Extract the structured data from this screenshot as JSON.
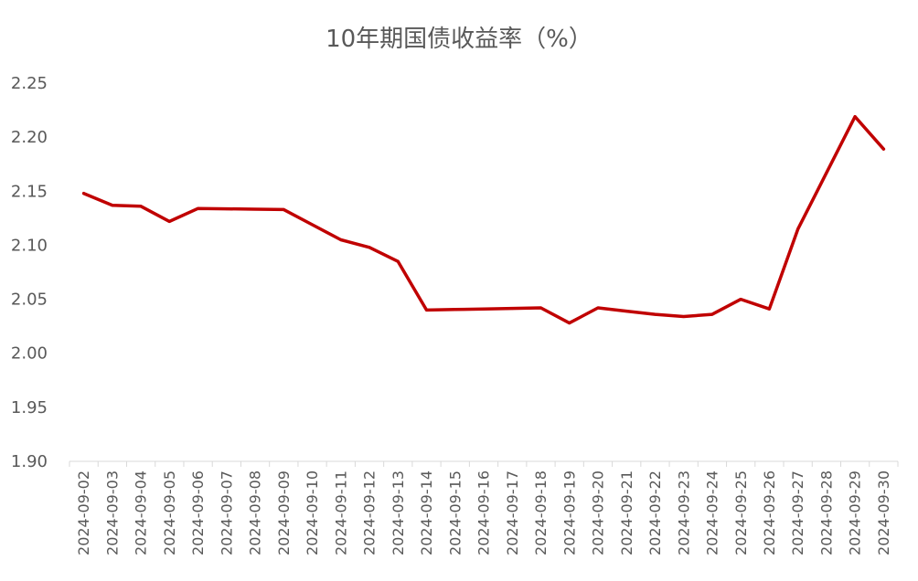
{
  "chart_data": {
    "type": "line",
    "title": "10年期国债收益率（%）",
    "xlabel": "",
    "ylabel": "",
    "ylim": [
      1.9,
      2.25
    ],
    "yticks": [
      "1.90",
      "1.95",
      "2.00",
      "2.05",
      "2.10",
      "2.15",
      "2.20",
      "2.25"
    ],
    "grid": false,
    "line_color": "#C00000",
    "categories": [
      "2024-09-02",
      "2024-09-03",
      "2024-09-04",
      "2024-09-05",
      "2024-09-06",
      "2024-09-07",
      "2024-09-08",
      "2024-09-09",
      "2024-09-10",
      "2024-09-11",
      "2024-09-12",
      "2024-09-13",
      "2024-09-14",
      "2024-09-15",
      "2024-09-16",
      "2024-09-17",
      "2024-09-18",
      "2024-09-19",
      "2024-09-20",
      "2024-09-21",
      "2024-09-22",
      "2024-09-23",
      "2024-09-24",
      "2024-09-25",
      "2024-09-26",
      "2024-09-27",
      "2024-09-28",
      "2024-09-29",
      "2024-09-30"
    ],
    "series": [
      {
        "values": [
          2.148,
          2.137,
          2.136,
          2.122,
          2.134,
          2.1337,
          2.1333,
          2.133,
          2.119,
          2.105,
          2.098,
          2.085,
          2.04,
          2.0405,
          2.041,
          2.0415,
          2.042,
          2.028,
          2.042,
          2.039,
          2.036,
          2.034,
          2.036,
          2.05,
          2.041,
          2.115,
          2.167,
          2.219,
          2.189
        ]
      }
    ]
  }
}
